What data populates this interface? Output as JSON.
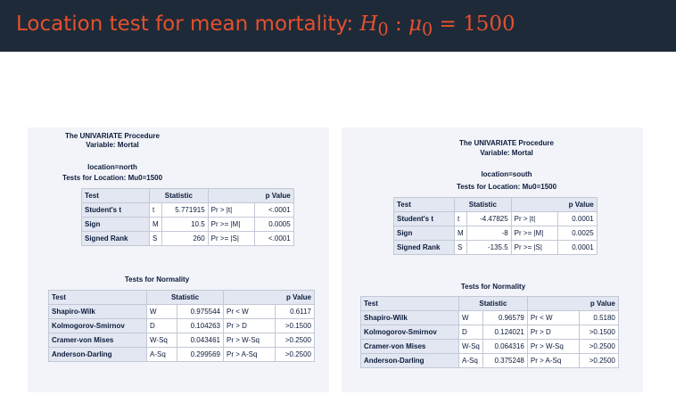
{
  "slide": {
    "title_text": "Location test for mean mortality: ",
    "title_math": {
      "h": "H",
      "h_sub": "0",
      "colon": ":",
      "mu": "μ",
      "mu_sub": "0",
      "eq": "=",
      "value": "1500"
    }
  },
  "panels": [
    {
      "procedure": "The UNIVARIATE Procedure",
      "variable": "Variable: Mortal",
      "group": "location=north",
      "location_title": "Tests for Location: Mu0=1500",
      "location_headers": [
        "Test",
        "Statistic",
        "p Value"
      ],
      "location_rows": [
        {
          "test": "Student's t",
          "sym": "t",
          "stat": "5.771915",
          "pl": "Pr > |t|",
          "pv": "<.0001"
        },
        {
          "test": "Sign",
          "sym": "M",
          "stat": "10.5",
          "pl": "Pr >= |M|",
          "pv": "0.0005"
        },
        {
          "test": "Signed Rank",
          "sym": "S",
          "stat": "260",
          "pl": "Pr >= |S|",
          "pv": "<.0001"
        }
      ],
      "normality_title": "Tests for Normality",
      "normality_headers": [
        "Test",
        "Statistic",
        "p Value"
      ],
      "normality_rows": [
        {
          "test": "Shapiro-Wilk",
          "sym": "W",
          "stat": "0.975544",
          "pl": "Pr < W",
          "pv": "0.6117"
        },
        {
          "test": "Kolmogorov-Smirnov",
          "sym": "D",
          "stat": "0.104263",
          "pl": "Pr > D",
          "pv": ">0.1500"
        },
        {
          "test": "Cramer-von Mises",
          "sym": "W-Sq",
          "stat": "0.043461",
          "pl": "Pr > W-Sq",
          "pv": ">0.2500"
        },
        {
          "test": "Anderson-Darling",
          "sym": "A-Sq",
          "stat": "0.299569",
          "pl": "Pr > A-Sq",
          "pv": ">0.2500"
        }
      ]
    },
    {
      "procedure": "The UNIVARIATE Procedure",
      "variable": "Variable: Mortal",
      "group": "location=south",
      "location_title": "Tests for Location: Mu0=1500",
      "location_headers": [
        "Test",
        "Statistic",
        "p Value"
      ],
      "location_rows": [
        {
          "test": "Student's t",
          "sym": "t",
          "stat": "-4.47825",
          "pl": "Pr > |t|",
          "pv": "0.0001"
        },
        {
          "test": "Sign",
          "sym": "M",
          "stat": "-8",
          "pl": "Pr >= |M|",
          "pv": "0.0025"
        },
        {
          "test": "Signed Rank",
          "sym": "S",
          "stat": "-135.5",
          "pl": "Pr >= |S|",
          "pv": "0.0001"
        }
      ],
      "normality_title": "Tests for Normality",
      "normality_headers": [
        "Test",
        "Statistic",
        "p Value"
      ],
      "normality_rows": [
        {
          "test": "Shapiro-Wilk",
          "sym": "W",
          "stat": "0.96579",
          "pl": "Pr < W",
          "pv": "0.5180"
        },
        {
          "test": "Kolmogorov-Smirnov",
          "sym": "D",
          "stat": "0.124021",
          "pl": "Pr > D",
          "pv": ">0.1500"
        },
        {
          "test": "Cramer-von Mises",
          "sym": "W-Sq",
          "stat": "0.064316",
          "pl": "Pr > W-Sq",
          "pv": ">0.2500"
        },
        {
          "test": "Anderson-Darling",
          "sym": "A-Sq",
          "stat": "0.375248",
          "pl": "Pr > A-Sq",
          "pv": ">0.2500"
        }
      ]
    }
  ]
}
